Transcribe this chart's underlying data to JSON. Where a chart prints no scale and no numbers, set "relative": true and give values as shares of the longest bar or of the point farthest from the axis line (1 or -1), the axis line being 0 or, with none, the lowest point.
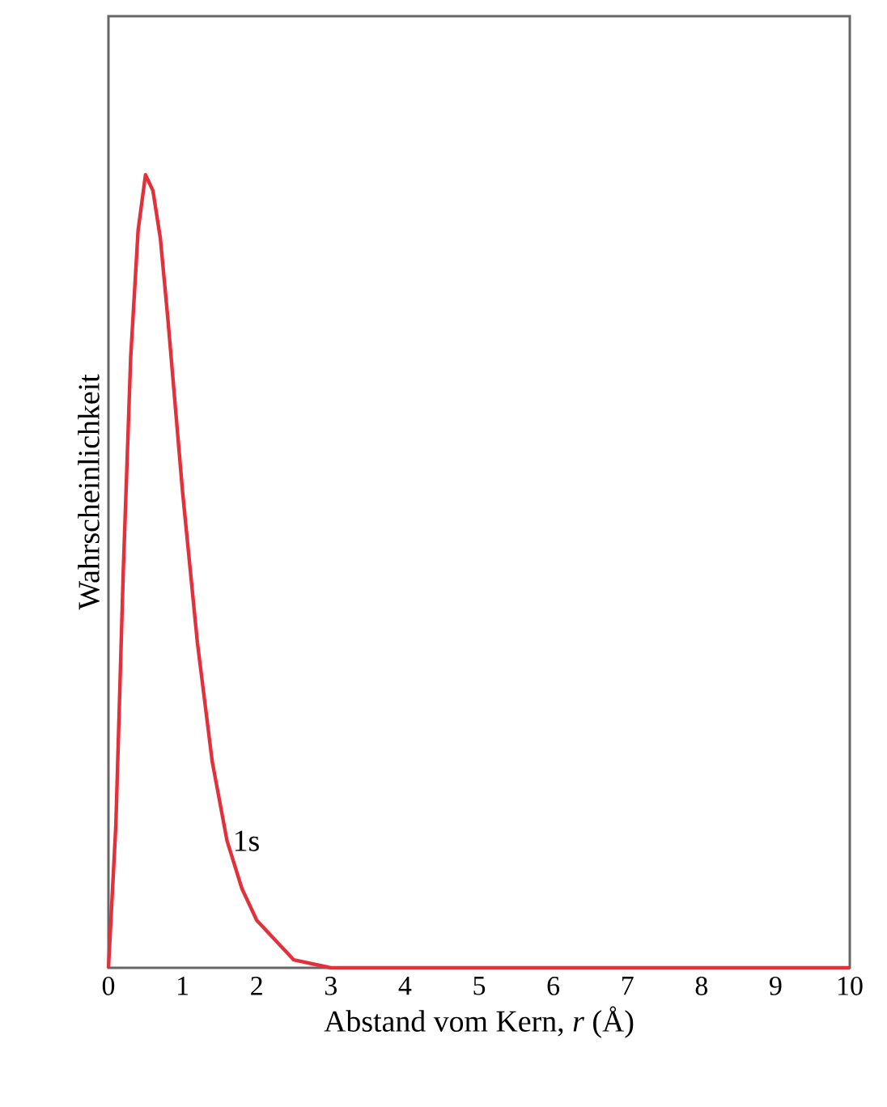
{
  "chart_data": {
    "type": "line",
    "xlabel": "Abstand vom Kern, *r* (Å)",
    "ylabel": "Wahrscheinlichkeit",
    "relative": true,
    "xlim": [
      0,
      10
    ],
    "xticks": [
      0,
      1,
      2,
      3,
      4,
      5,
      6,
      7,
      8,
      9,
      10
    ],
    "x": [
      0,
      0.1,
      0.2,
      0.3,
      0.4,
      0.5,
      0.6,
      0.7,
      0.8,
      1.0,
      1.2,
      1.4,
      1.6,
      1.8,
      2.0,
      2.5,
      3.0,
      4.0,
      6.0,
      8.0,
      10.0
    ],
    "series": [
      {
        "name": "1s",
        "color": "#e3303a",
        "values": [
          0,
          0.18,
          0.5,
          0.77,
          0.93,
          1,
          0.98,
          0.92,
          0.82,
          0.6,
          0.41,
          0.26,
          0.16,
          0.1,
          0.06,
          0.01,
          0,
          0,
          0,
          0,
          0
        ]
      }
    ]
  }
}
